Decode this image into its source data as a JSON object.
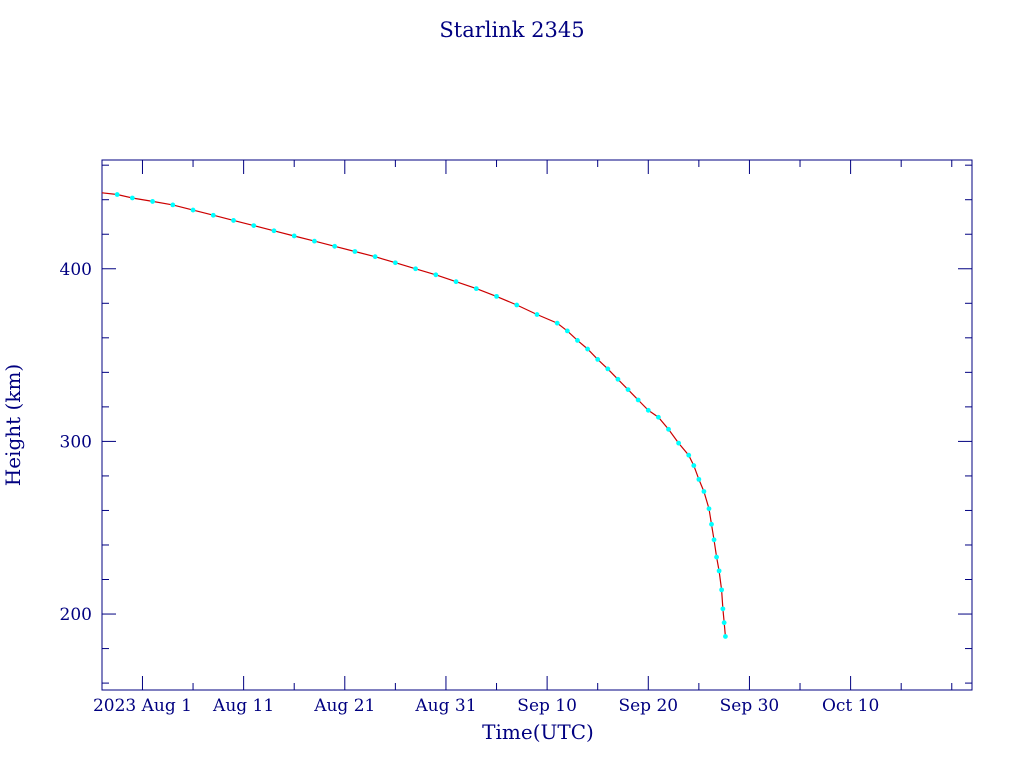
{
  "chart_data": {
    "type": "line",
    "title": "Starlink 2345",
    "xlabel": "Time(UTC)",
    "ylabel": "Height (km)",
    "xlim": [
      "2023-07-28",
      "2023-10-22"
    ],
    "ylim": [
      156,
      463
    ],
    "xticks": [
      {
        "date": "2023-08-01",
        "label": "2023 Aug  1"
      },
      {
        "date": "2023-08-11",
        "label": "Aug 11"
      },
      {
        "date": "2023-08-21",
        "label": "Aug 21"
      },
      {
        "date": "2023-08-31",
        "label": "Aug 31"
      },
      {
        "date": "2023-09-10",
        "label": "Sep 10"
      },
      {
        "date": "2023-09-20",
        "label": "Sep 20"
      },
      {
        "date": "2023-09-30",
        "label": "Sep 30"
      },
      {
        "date": "2023-10-10",
        "label": "Oct 10"
      }
    ],
    "yticks": [
      200,
      300,
      400
    ],
    "grid": false,
    "line_color": "#cc0000",
    "marker_color": "#00ffff",
    "axis_color": "#000080",
    "series": [
      {
        "x": [
          "2023-07-28",
          "2023-07-29 12:00",
          "2023-07-31",
          "2023-08-02",
          "2023-08-04",
          "2023-08-06",
          "2023-08-08",
          "2023-08-10",
          "2023-08-12",
          "2023-08-14",
          "2023-08-16",
          "2023-08-18",
          "2023-08-20",
          "2023-08-22",
          "2023-08-24",
          "2023-08-26",
          "2023-08-28",
          "2023-08-30",
          "2023-09-01",
          "2023-09-03",
          "2023-09-05",
          "2023-09-07",
          "2023-09-09",
          "2023-09-11",
          "2023-09-12",
          "2023-09-13",
          "2023-09-14",
          "2023-09-15",
          "2023-09-16",
          "2023-09-17",
          "2023-09-18",
          "2023-09-19",
          "2023-09-20",
          "2023-09-21",
          "2023-09-22",
          "2023-09-23",
          "2023-09-24",
          "2023-09-24 12:00",
          "2023-09-25",
          "2023-09-25 12:00",
          "2023-09-26",
          "2023-09-26 06:00",
          "2023-09-26 12:00",
          "2023-09-26 18:00",
          "2023-09-27",
          "2023-09-27 06:00",
          "2023-09-27 09:00",
          "2023-09-27 12:00",
          "2023-09-27 15:00"
        ],
        "y": [
          444,
          443,
          441,
          439,
          437,
          434,
          431,
          428,
          425,
          422,
          419,
          416,
          413,
          410,
          407,
          403.5,
          400,
          396.5,
          392.5,
          388.5,
          384,
          379,
          373.5,
          368.5,
          364,
          358.5,
          353.5,
          347.5,
          342,
          336,
          330,
          324,
          318,
          314,
          307,
          299,
          292,
          286,
          278,
          271,
          261,
          252,
          243,
          233,
          225,
          214,
          203,
          195,
          187
        ]
      }
    ]
  }
}
